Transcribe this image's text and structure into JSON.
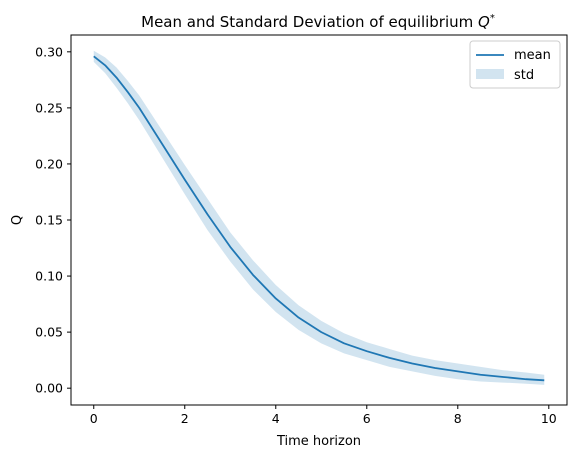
{
  "chart_data": {
    "type": "line",
    "title": "Mean and Standard Deviation of equilibrium ",
    "title_symbol": "Q",
    "title_superscript": "*",
    "xlabel": "Time horizon",
    "ylabel": "Q",
    "xlim": [
      -0.5,
      10.4
    ],
    "ylim": [
      -0.015,
      0.315
    ],
    "xticks": [
      0,
      2,
      4,
      6,
      8,
      10
    ],
    "xtick_labels": [
      "0",
      "2",
      "4",
      "6",
      "8",
      "10"
    ],
    "yticks": [
      0.0,
      0.05,
      0.1,
      0.15,
      0.2,
      0.25,
      0.3
    ],
    "ytick_labels": [
      "0.00",
      "0.05",
      "0.10",
      "0.15",
      "0.20",
      "0.25",
      "0.30"
    ],
    "grid": false,
    "legend_position": "top-right",
    "x": [
      0,
      0.25,
      0.5,
      0.75,
      1,
      1.5,
      2,
      2.5,
      3,
      3.5,
      4,
      4.5,
      5,
      5.5,
      6,
      6.5,
      7,
      7.5,
      8,
      8.5,
      9,
      9.5,
      9.9
    ],
    "series": [
      {
        "name": "mean",
        "color": "#1f77b4",
        "values": [
          0.296,
          0.288,
          0.277,
          0.264,
          0.25,
          0.218,
          0.186,
          0.155,
          0.126,
          0.101,
          0.08,
          0.063,
          0.05,
          0.04,
          0.033,
          0.027,
          0.022,
          0.018,
          0.015,
          0.012,
          0.01,
          0.008,
          0.007
        ]
      },
      {
        "name": "std",
        "type": "band",
        "color": "#1f77b4",
        "opacity": 0.2,
        "lower": [
          0.291,
          0.281,
          0.268,
          0.254,
          0.239,
          0.206,
          0.173,
          0.141,
          0.113,
          0.088,
          0.068,
          0.052,
          0.04,
          0.031,
          0.025,
          0.019,
          0.015,
          0.011,
          0.008,
          0.006,
          0.005,
          0.004,
          0.003
        ],
        "upper": [
          0.301,
          0.295,
          0.286,
          0.274,
          0.261,
          0.23,
          0.199,
          0.169,
          0.139,
          0.114,
          0.092,
          0.074,
          0.06,
          0.049,
          0.041,
          0.035,
          0.029,
          0.025,
          0.022,
          0.019,
          0.016,
          0.014,
          0.012
        ]
      }
    ]
  }
}
